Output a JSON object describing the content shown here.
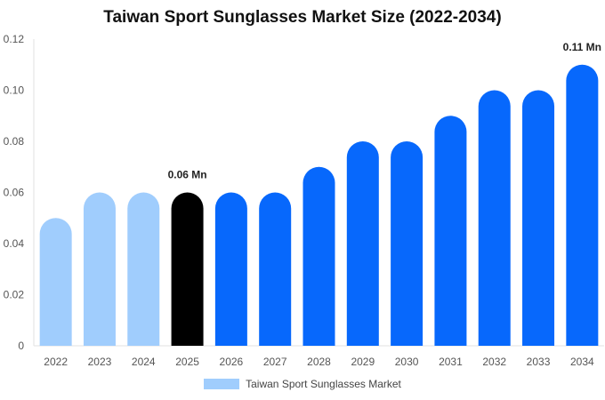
{
  "chart_data": {
    "type": "bar",
    "title": "Taiwan Sport Sunglasses Market Size (2022-2034)",
    "xlabel": "",
    "ylabel": "",
    "ylim": [
      0,
      0.12
    ],
    "y_ticks": [
      "0",
      "0.02",
      "0.04",
      "0.06",
      "0.08",
      "0.10",
      "0.12"
    ],
    "categories": [
      "2022",
      "2023",
      "2024",
      "2025",
      "2026",
      "2027",
      "2028",
      "2029",
      "2030",
      "2031",
      "2032",
      "2033",
      "2034"
    ],
    "series": [
      {
        "name": "Taiwan Sport Sunglasses Market",
        "values": [
          0.05,
          0.06,
          0.06,
          0.06,
          0.06,
          0.06,
          0.07,
          0.08,
          0.08,
          0.09,
          0.1,
          0.1,
          0.11
        ]
      }
    ],
    "bar_colors": [
      "#a0cdfd",
      "#a0cdfd",
      "#a0cdfd",
      "#000000",
      "#0768fc",
      "#0768fc",
      "#0768fc",
      "#0768fc",
      "#0768fc",
      "#0768fc",
      "#0768fc",
      "#0768fc",
      "#0768fc"
    ],
    "annotations": [
      {
        "category": "2025",
        "text": "0.06 Mn"
      },
      {
        "category": "2034",
        "text": "0.11 Mn"
      }
    ],
    "legend": {
      "position": "bottom",
      "label": "Taiwan Sport Sunglasses Market",
      "color": "#a0cdfd"
    },
    "grid": false
  }
}
